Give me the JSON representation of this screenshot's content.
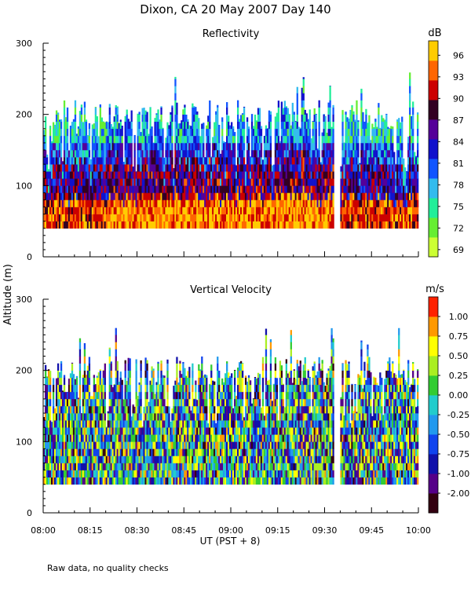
{
  "title": "Dixon, CA 20 May 2007  Day 140",
  "footnote": "Raw data, no quality checks",
  "shared_ylabel": "Altitude (m)",
  "xlabel": "UT  (PST + 8)",
  "chart_data": [
    {
      "type": "heatmap",
      "title": "Reflectivity",
      "x_ticks": [
        "08:00",
        "08:15",
        "08:30",
        "08:45",
        "09:00",
        "09:15",
        "09:30",
        "09:45",
        "10:00"
      ],
      "x_range": [
        "08:00",
        "10:00"
      ],
      "y_ticks": [
        0,
        100,
        200,
        300
      ],
      "ylim": [
        0,
        300
      ],
      "colorbar": {
        "unit": "dB",
        "range": [
          68,
          98
        ],
        "tick_values": [
          69,
          72,
          75,
          78,
          81,
          84,
          87,
          90,
          93,
          96
        ],
        "tick_labels": [
          "69",
          "72",
          "75",
          "78",
          "81",
          "84",
          "87",
          "90",
          "93",
          "96"
        ],
        "colors": [
          "#ccff33",
          "#66ee33",
          "#22ee99",
          "#33bbee",
          "#1155ff",
          "#1111cc",
          "#550099",
          "#330022",
          "#cc0000",
          "#ff6600",
          "#ffcc00"
        ]
      },
      "data_extent": {
        "min_altitude_m": 40,
        "typical_top_m": 200,
        "max_top_m": 260
      },
      "data_gap": [
        "09:33",
        "09:35"
      ]
    },
    {
      "type": "heatmap",
      "title": "Vertical Velocity",
      "x_ticks": [
        "08:00",
        "08:15",
        "08:30",
        "08:45",
        "09:00",
        "09:15",
        "09:30",
        "09:45",
        "10:00"
      ],
      "x_range": [
        "08:00",
        "10:00"
      ],
      "y_ticks": [
        0,
        100,
        200,
        300
      ],
      "ylim": [
        0,
        300
      ],
      "colorbar": {
        "unit": "m/s",
        "tick_labels": [
          "-2.00",
          "-1.00",
          "-0.75",
          "-0.50",
          "-0.25",
          "0.00",
          "0.25",
          "0.50",
          "0.75",
          "1.00"
        ],
        "colors": [
          "#330011",
          "#550088",
          "#1111aa",
          "#1144ee",
          "#2299ee",
          "#22cccc",
          "#33cc33",
          "#aaee22",
          "#ffff00",
          "#ff9900",
          "#ff2200"
        ]
      },
      "data_extent": {
        "min_altitude_m": 40,
        "typical_top_m": 200,
        "max_top_m": 260
      },
      "data_gap": [
        "09:33",
        "09:35"
      ]
    }
  ]
}
